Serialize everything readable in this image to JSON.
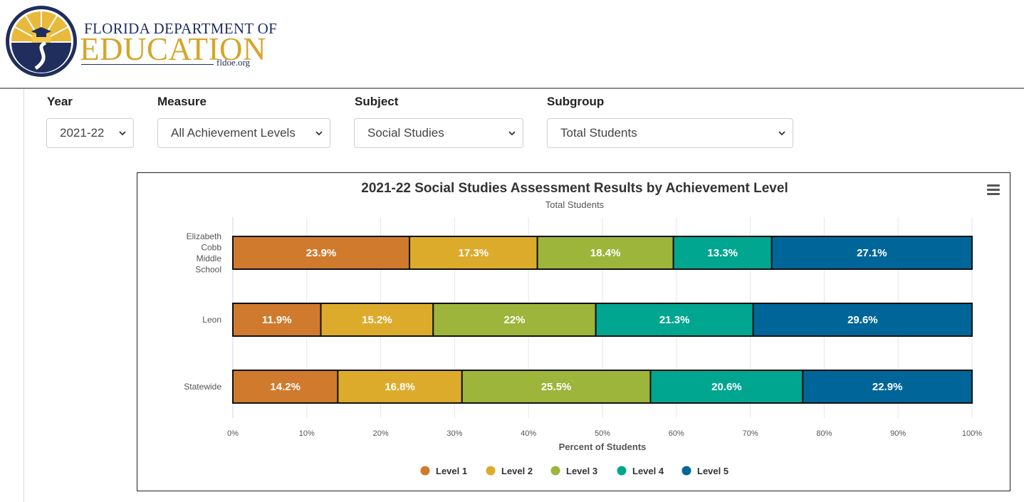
{
  "logo": {
    "line1": "FLORIDA DEPARTMENT OF",
    "line2": "EDUCATION",
    "url": "fldoe.org",
    "colors": {
      "navy": "#1f2e5c",
      "gold": "#d6a52a"
    }
  },
  "filters": {
    "year": {
      "label": "Year",
      "value": "2021-22"
    },
    "measure": {
      "label": "Measure",
      "value": "All Achievement Levels"
    },
    "subject": {
      "label": "Subject",
      "value": "Social Studies"
    },
    "subgroup": {
      "label": "Subgroup",
      "value": "Total Students"
    }
  },
  "chart_menu_icon": "hamburger-menu-icon",
  "chart_data": {
    "type": "bar",
    "orientation": "horizontal",
    "stacked": "percent",
    "title": "2021-22 Social Studies Assessment Results by Achievement Level",
    "subtitle": "Total Students",
    "xlabel": "Percent of Students",
    "ylabel": "",
    "xlim": [
      0,
      100
    ],
    "x_ticks": [
      "0%",
      "10%",
      "20%",
      "30%",
      "40%",
      "50%",
      "60%",
      "70%",
      "80%",
      "90%",
      "100%"
    ],
    "categories": [
      "Elizabeth Cobb Middle School",
      "Leon",
      "Statewide"
    ],
    "category_label_lines": [
      [
        "Elizabeth",
        "Cobb",
        "Middle",
        "School"
      ],
      [
        "Leon"
      ],
      [
        "Statewide"
      ]
    ],
    "series": [
      {
        "name": "Level 1",
        "color": "#d07a2d",
        "values": [
          23.9,
          11.9,
          14.2
        ],
        "labels": [
          "23.9%",
          "11.9%",
          "14.2%"
        ]
      },
      {
        "name": "Level 2",
        "color": "#ddab2c",
        "values": [
          17.3,
          15.2,
          16.8
        ],
        "labels": [
          "17.3%",
          "15.2%",
          "16.8%"
        ]
      },
      {
        "name": "Level 3",
        "color": "#9db53b",
        "values": [
          18.4,
          22.0,
          25.5
        ],
        "labels": [
          "18.4%",
          "22%",
          "25.5%"
        ]
      },
      {
        "name": "Level 4",
        "color": "#00a68f",
        "values": [
          13.3,
          21.3,
          20.6
        ],
        "labels": [
          "13.3%",
          "21.3%",
          "20.6%"
        ]
      },
      {
        "name": "Level 5",
        "color": "#006699",
        "values": [
          27.1,
          29.6,
          22.9
        ],
        "labels": [
          "27.1%",
          "29.6%",
          "22.9%"
        ]
      }
    ],
    "grid": true,
    "legend_position": "bottom-center"
  }
}
